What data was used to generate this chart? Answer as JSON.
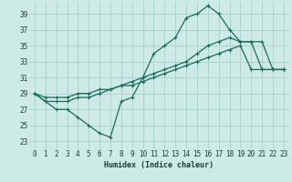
{
  "xlabel": "Humidex (Indice chaleur)",
  "bg_color": "#ceeae6",
  "grid_color": "#aad4ce",
  "line_color": "#1a6b5a",
  "xlim": [
    -0.5,
    23.5
  ],
  "ylim": [
    22,
    40.5
  ],
  "yticks": [
    23,
    25,
    27,
    29,
    31,
    33,
    35,
    37,
    39
  ],
  "xticks": [
    0,
    1,
    2,
    3,
    4,
    5,
    6,
    7,
    8,
    9,
    10,
    11,
    12,
    13,
    14,
    15,
    16,
    17,
    18,
    19,
    20,
    21,
    22,
    23
  ],
  "line1_x": [
    0,
    1,
    2,
    3,
    4,
    5,
    6,
    7,
    8,
    9,
    10,
    11,
    12,
    13,
    14,
    15,
    16,
    17,
    18,
    19,
    20,
    21,
    22,
    23
  ],
  "line1_y": [
    29,
    28,
    27,
    27,
    26,
    25,
    24,
    23.5,
    28,
    28.5,
    31,
    34,
    35,
    36,
    38.5,
    39,
    40,
    39,
    37,
    35.5,
    35.5,
    35.5,
    32,
    32
  ],
  "line2_x": [
    0,
    1,
    2,
    3,
    4,
    5,
    6,
    7,
    8,
    9,
    10,
    11,
    12,
    13,
    14,
    15,
    16,
    17,
    18,
    19,
    20,
    21,
    22,
    23
  ],
  "line2_y": [
    29,
    28.5,
    28.5,
    28.5,
    29,
    29,
    29.5,
    29.5,
    30,
    30.5,
    31,
    31.5,
    32,
    32.5,
    33,
    34,
    35,
    35.5,
    36,
    35.5,
    35.5,
    32,
    32,
    32
  ],
  "line3_x": [
    0,
    1,
    2,
    3,
    4,
    5,
    6,
    7,
    8,
    9,
    10,
    11,
    12,
    13,
    14,
    15,
    16,
    17,
    18,
    19,
    20,
    21,
    22,
    23
  ],
  "line3_y": [
    29,
    28,
    28,
    28,
    28.5,
    28.5,
    29,
    29.5,
    30,
    30,
    30.5,
    31,
    31.5,
    32,
    32.5,
    33,
    33.5,
    34,
    34.5,
    35,
    32,
    32,
    32,
    32
  ]
}
